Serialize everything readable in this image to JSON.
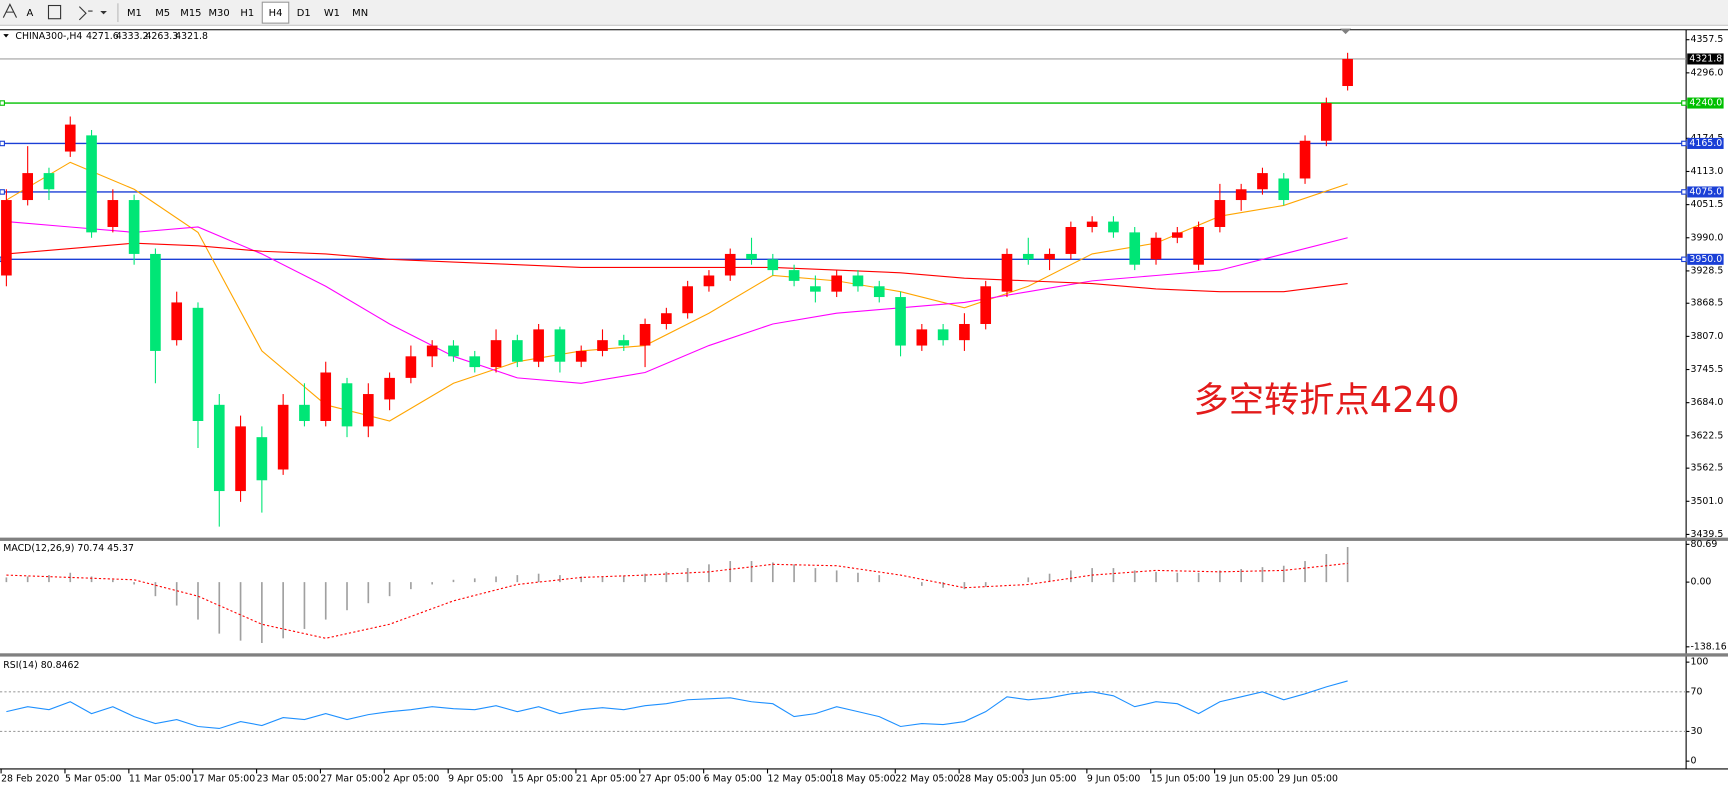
{
  "toolbar": {
    "font_button": "A",
    "periods": [
      "M1",
      "M5",
      "M15",
      "M30",
      "H1",
      "H4",
      "D1",
      "W1",
      "MN"
    ]
  },
  "chart_data": [
    {
      "type": "candlestick",
      "title": "CHINA300-,H4",
      "header_values": [
        4271.6,
        4333.2,
        4263.3,
        4321.8
      ],
      "up_color": "#ff0000",
      "down_color": "#00e676",
      "candles": [
        [
          3920,
          4080,
          3900,
          4060
        ],
        [
          4060,
          4160,
          4050,
          4110
        ],
        [
          4110,
          4120,
          4060,
          4080
        ],
        [
          4150,
          4215,
          4140,
          4200
        ],
        [
          4180,
          4190,
          3990,
          4000
        ],
        [
          4010,
          4080,
          4000,
          4060
        ],
        [
          4060,
          4070,
          3940,
          3960
        ],
        [
          3960,
          3970,
          3720,
          3780
        ],
        [
          3800,
          3890,
          3790,
          3870
        ],
        [
          3860,
          3870,
          3600,
          3650
        ],
        [
          3680,
          3700,
          3454,
          3520
        ],
        [
          3520,
          3660,
          3500,
          3640
        ],
        [
          3620,
          3640,
          3480,
          3540
        ],
        [
          3560,
          3700,
          3550,
          3680
        ],
        [
          3680,
          3720,
          3640,
          3650
        ],
        [
          3650,
          3760,
          3640,
          3740
        ],
        [
          3720,
          3730,
          3620,
          3640
        ],
        [
          3640,
          3720,
          3620,
          3700
        ],
        [
          3690,
          3740,
          3670,
          3730
        ],
        [
          3730,
          3790,
          3720,
          3770
        ],
        [
          3770,
          3800,
          3750,
          3790
        ],
        [
          3790,
          3800,
          3760,
          3770
        ],
        [
          3770,
          3780,
          3740,
          3750
        ],
        [
          3750,
          3820,
          3740,
          3800
        ],
        [
          3800,
          3810,
          3750,
          3760
        ],
        [
          3760,
          3830,
          3750,
          3820
        ],
        [
          3820,
          3825,
          3740,
          3760
        ],
        [
          3760,
          3790,
          3750,
          3780
        ],
        [
          3780,
          3820,
          3770,
          3800
        ],
        [
          3800,
          3810,
          3780,
          3790
        ],
        [
          3790,
          3840,
          3750,
          3830
        ],
        [
          3830,
          3860,
          3820,
          3850
        ],
        [
          3850,
          3910,
          3840,
          3900
        ],
        [
          3900,
          3930,
          3890,
          3920
        ],
        [
          3920,
          3970,
          3910,
          3960
        ],
        [
          3960,
          3990,
          3940,
          3950
        ],
        [
          3950,
          3960,
          3920,
          3930
        ],
        [
          3930,
          3940,
          3900,
          3910
        ],
        [
          3900,
          3920,
          3870,
          3890
        ],
        [
          3890,
          3930,
          3880,
          3920
        ],
        [
          3920,
          3930,
          3890,
          3900
        ],
        [
          3900,
          3910,
          3870,
          3880
        ],
        [
          3880,
          3890,
          3770,
          3790
        ],
        [
          3790,
          3830,
          3780,
          3820
        ],
        [
          3820,
          3830,
          3790,
          3800
        ],
        [
          3800,
          3850,
          3780,
          3830
        ],
        [
          3830,
          3910,
          3820,
          3900
        ],
        [
          3890,
          3970,
          3880,
          3960
        ],
        [
          3960,
          3990,
          3940,
          3950
        ],
        [
          3950,
          3970,
          3930,
          3960
        ],
        [
          3960,
          4020,
          3950,
          4010
        ],
        [
          4010,
          4030,
          4000,
          4020
        ],
        [
          4020,
          4030,
          3990,
          4000
        ],
        [
          4000,
          4010,
          3930,
          3940
        ],
        [
          3950,
          4000,
          3940,
          3990
        ],
        [
          3990,
          4010,
          3980,
          4000
        ],
        [
          3940,
          4020,
          3930,
          4010
        ],
        [
          4010,
          4090,
          4000,
          4060
        ],
        [
          4060,
          4090,
          4040,
          4080
        ],
        [
          4080,
          4120,
          4070,
          4110
        ],
        [
          4100,
          4110,
          4050,
          4060
        ],
        [
          4100,
          4180,
          4090,
          4170
        ],
        [
          4170,
          4250,
          4160,
          4240
        ],
        [
          4271.6,
          4333.2,
          4263.3,
          4321.8
        ]
      ],
      "ma_x": [
        0,
        3,
        6,
        9,
        12,
        15,
        18,
        21,
        24,
        27,
        30,
        33,
        36,
        39,
        42,
        45,
        48,
        51,
        54,
        57,
        60,
        63
      ],
      "moving_averages": [
        {
          "color": "#ffa500",
          "values": [
            4060,
            4130,
            4080,
            4000,
            3780,
            3680,
            3650,
            3720,
            3760,
            3780,
            3790,
            3850,
            3920,
            3910,
            3890,
            3860,
            3900,
            3960,
            3980,
            4030,
            4050,
            4090
          ]
        },
        {
          "color": "#ff00ff",
          "values": [
            4020,
            4010,
            4000,
            4010,
            3960,
            3900,
            3830,
            3770,
            3730,
            3720,
            3740,
            3790,
            3830,
            3850,
            3860,
            3870,
            3890,
            3910,
            3920,
            3930,
            3960,
            3990
          ]
        },
        {
          "color": "#ff0000",
          "values": [
            3960,
            3970,
            3980,
            3975,
            3965,
            3960,
            3950,
            3945,
            3940,
            3935,
            3935,
            3935,
            3935,
            3930,
            3925,
            3915,
            3910,
            3905,
            3895,
            3890,
            3890,
            3905
          ]
        }
      ],
      "hlines": [
        {
          "value": 4240,
          "label": "4240.0",
          "color": "#00c000"
        },
        {
          "value": 4165,
          "label": "4165.0",
          "color": "#1a3fd6"
        },
        {
          "value": 4075,
          "label": "4075.0",
          "color": "#1a3fd6"
        },
        {
          "value": 3950,
          "label": "3950.0",
          "color": "#1a3fd6"
        }
      ],
      "last_price": 4321.8,
      "annotation": "多空转折点4240",
      "xlim": [
        -0.3,
        78.9
      ],
      "ylim": [
        3433.6,
        4376
      ],
      "yticks": [
        4357.5,
        {
          "value": 4296,
          "label": "4296.0"
        },
        4174.5,
        {
          "value": 4113,
          "label": "4113.0"
        },
        4051.5,
        {
          "value": 3990,
          "label": "3990.0"
        },
        3928.5,
        3868.5,
        {
          "value": 3807,
          "label": "3807.0"
        },
        3745.5,
        {
          "value": 3684,
          "label": "3684.0"
        },
        3622.5,
        3562.5,
        {
          "value": 3501,
          "label": "3501.0"
        },
        3439.5
      ],
      "xticks": [
        {
          "value": 0,
          "label": "28 Feb 2020"
        },
        {
          "value": 3,
          "label": "5 Mar 05:00"
        },
        {
          "value": 6,
          "label": "11 Mar 05:00"
        },
        {
          "value": 9,
          "label": "17 Mar 05:00"
        },
        {
          "value": 12,
          "label": "23 Mar 05:00"
        },
        {
          "value": 15,
          "label": "27 Mar 05:00"
        },
        {
          "value": 18,
          "label": "2 Apr 05:00"
        },
        {
          "value": 21,
          "label": "9 Apr 05:00"
        },
        {
          "value": 24,
          "label": "15 Apr 05:00"
        },
        {
          "value": 27,
          "label": "21 Apr 05:00"
        },
        {
          "value": 30,
          "label": "27 Apr 05:00"
        },
        {
          "value": 33,
          "label": "6 May 05:00"
        },
        {
          "value": 36,
          "label": "12 May 05:00"
        },
        {
          "value": 39,
          "label": "18 May 05:00"
        },
        {
          "value": 42,
          "label": "22 May 05:00"
        },
        {
          "value": 45,
          "label": "28 May 05:00"
        },
        {
          "value": 48,
          "label": "3 Jun 05:00"
        },
        {
          "value": 51,
          "label": "9 Jun 05:00"
        },
        {
          "value": 54,
          "label": "15 Jun 05:00"
        },
        {
          "value": 57,
          "label": "19 Jun 05:00"
        },
        {
          "value": 60,
          "label": "29 Jun 05:00"
        }
      ]
    },
    {
      "type": "macd",
      "label": "MACD(12,26,9) 70.74 45.37",
      "hist_color": "#a0a0a0",
      "signal_color": "#ff0000",
      "histogram": [
        10,
        12,
        15,
        20,
        12,
        5,
        -5,
        -30,
        -50,
        -80,
        -110,
        -125,
        -130,
        -120,
        -100,
        -80,
        -60,
        -45,
        -30,
        -15,
        -5,
        5,
        8,
        12,
        15,
        18,
        15,
        12,
        12,
        14,
        18,
        22,
        30,
        38,
        45,
        45,
        42,
        38,
        30,
        25,
        20,
        15,
        0,
        -8,
        -12,
        -15,
        -10,
        0,
        10,
        18,
        25,
        30,
        30,
        25,
        22,
        20,
        20,
        25,
        28,
        32,
        35,
        45,
        60,
        75
      ],
      "signal_x": [
        0,
        3,
        6,
        9,
        12,
        15,
        18,
        21,
        24,
        27,
        30,
        33,
        36,
        39,
        42,
        45,
        48,
        51,
        54,
        57,
        60,
        63
      ],
      "signal": [
        15,
        10,
        5,
        -30,
        -90,
        -120,
        -90,
        -40,
        -5,
        10,
        15,
        22,
        38,
        35,
        15,
        -12,
        -5,
        15,
        25,
        22,
        25,
        40
      ],
      "xlim": [
        -0.3,
        78.9
      ],
      "ylim": [
        -152,
        88
      ],
      "yticks": [
        80.69,
        {
          "value": 0,
          "label": "0.00"
        },
        -138.16
      ]
    },
    {
      "type": "line",
      "label": "RSI(14) 80.8462",
      "color": "#1e90ff",
      "values": [
        50,
        55,
        52,
        60,
        48,
        55,
        45,
        38,
        42,
        35,
        33,
        40,
        36,
        44,
        42,
        48,
        42,
        47,
        50,
        52,
        55,
        53,
        52,
        56,
        50,
        55,
        48,
        52,
        54,
        52,
        56,
        58,
        62,
        63,
        64,
        60,
        58,
        45,
        48,
        55,
        50,
        45,
        35,
        38,
        37,
        40,
        50,
        65,
        62,
        64,
        68,
        70,
        66,
        55,
        60,
        58,
        48,
        60,
        65,
        70,
        62,
        68,
        75,
        81
      ],
      "levels": [
        70,
        30
      ],
      "xlim": [
        -0.3,
        78.9
      ],
      "ylim": [
        -7.9,
        105.6
      ],
      "yticks": [
        100,
        70,
        30,
        0
      ]
    }
  ]
}
